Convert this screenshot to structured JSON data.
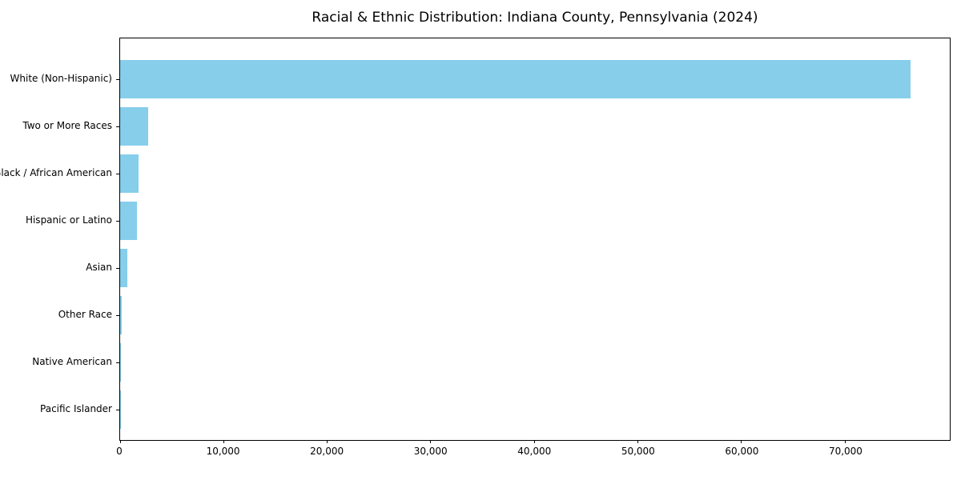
{
  "title": "Racial & Ethnic Distribution: Indiana County, Pennsylvania (2024)",
  "colors": {
    "bar": "#87CEEB",
    "axis": "#000000",
    "background": "#ffffff",
    "text": "#000000"
  },
  "chart_data": {
    "type": "bar",
    "orientation": "horizontal",
    "title": "Racial & Ethnic Distribution: Indiana County, Pennsylvania (2024)",
    "categories": [
      "White (Non-Hispanic)",
      "Two or More Races",
      "Black / African American",
      "Hispanic or Latino",
      "Asian",
      "Other Race",
      "Native American",
      "Pacific Islander"
    ],
    "values": [
      76300,
      2700,
      1800,
      1600,
      720,
      120,
      40,
      15
    ],
    "xlabel": "",
    "ylabel": "",
    "xlim": [
      0,
      80115
    ],
    "xticks": [
      0,
      10000,
      20000,
      30000,
      40000,
      50000,
      60000,
      70000
    ],
    "xtick_labels": [
      "0",
      "10,000",
      "20,000",
      "30,000",
      "40,000",
      "50,000",
      "60,000",
      "70,000"
    ],
    "grid": false,
    "legend": null,
    "bar_color": "#87CEEB"
  }
}
